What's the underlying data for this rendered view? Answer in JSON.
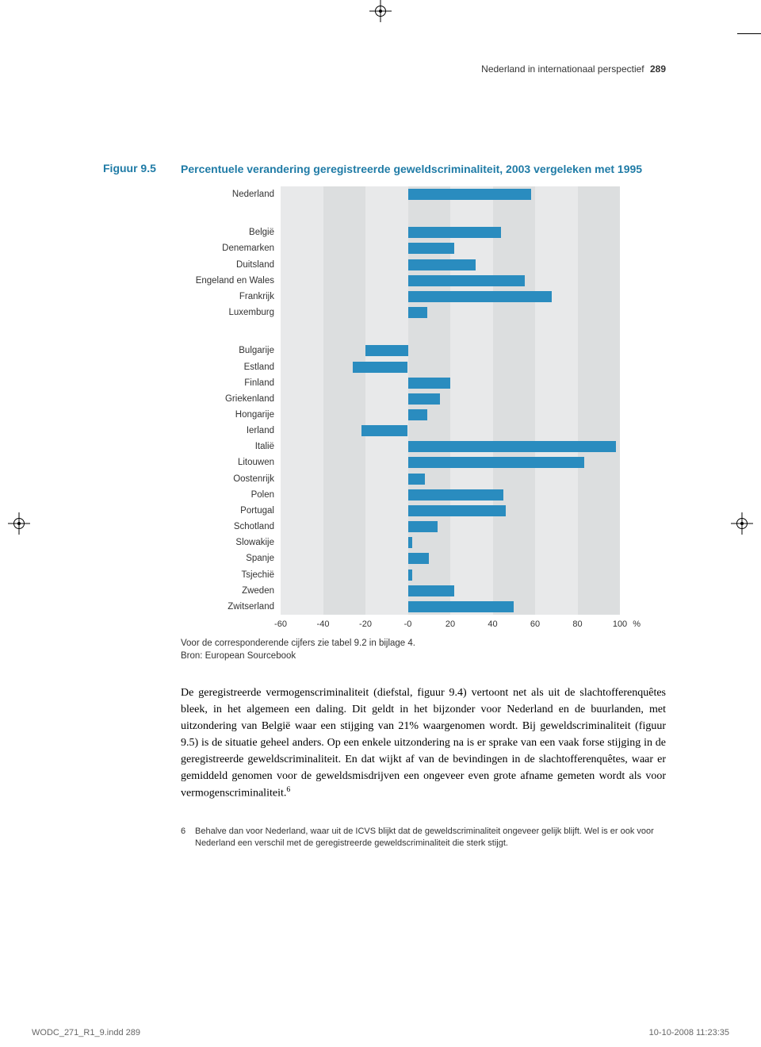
{
  "header": {
    "running_head": "Nederland in internationaal perspectief",
    "page_number": "289"
  },
  "figure": {
    "label": "Figuur 9.5",
    "title": "Percentuele verandering geregistreerde geweldscrimina­liteit, 2003 vergeleken met 1995"
  },
  "chart": {
    "type": "bar",
    "x_min": -60,
    "x_max": 100,
    "x_ticks": [
      -60,
      -40,
      -20,
      0,
      20,
      40,
      60,
      80,
      100
    ],
    "x_tick_labels": [
      "-60",
      "-40",
      "-20",
      "-0",
      "20",
      "40",
      "60",
      "80",
      "100"
    ],
    "unit": "%",
    "bar_color": "#2a8cbf",
    "band_colors": [
      "#e8e9ea",
      "#dcdedf"
    ],
    "background": "#ffffff",
    "groups": [
      {
        "items": [
          {
            "label": "Nederland",
            "value": 58
          }
        ]
      },
      {
        "items": [
          {
            "label": "België",
            "value": 44
          },
          {
            "label": "Denemarken",
            "value": 22
          },
          {
            "label": "Duitsland",
            "value": 32
          },
          {
            "label": "Engeland en Wales",
            "value": 55
          },
          {
            "label": "Frankrijk",
            "value": 68
          },
          {
            "label": "Luxemburg",
            "value": 9
          }
        ]
      },
      {
        "items": [
          {
            "label": "Bulgarije",
            "value": -20
          },
          {
            "label": "Estland",
            "value": -26
          },
          {
            "label": "Finland",
            "value": 20
          },
          {
            "label": "Griekenland",
            "value": 15
          },
          {
            "label": "Hongarije",
            "value": 9
          },
          {
            "label": "Ierland",
            "value": -22
          },
          {
            "label": "Italië",
            "value": 98
          },
          {
            "label": "Litouwen",
            "value": 83
          },
          {
            "label": "Oostenrijk",
            "value": 8
          },
          {
            "label": "Polen",
            "value": 45
          },
          {
            "label": "Portugal",
            "value": 46
          },
          {
            "label": "Schotland",
            "value": 14
          },
          {
            "label": "Slowakije",
            "value": 2
          },
          {
            "label": "Spanje",
            "value": 10
          },
          {
            "label": "Tsjechië",
            "value": 2
          },
          {
            "label": "Zweden",
            "value": 22
          },
          {
            "label": "Zwitserland",
            "value": 50
          }
        ]
      }
    ],
    "note1": "Voor de corresponderende cijfers zie tabel 9.2 in bijlage 4.",
    "note2": "Bron: European Sourcebook"
  },
  "body": "De geregistreerde vermogenscriminaliteit (diefstal, figuur 9.4) vertoont net als uit de slachtofferenquêtes bleek, in het algemeen een daling. Dit geldt in het bijzonder voor Nederland en de buurlanden, met uitzondering van België waar een stijging van 21% waargenomen wordt. Bij geweldscrimina­liteit (figuur 9.5) is de situatie geheel anders. Op een enkele uitzondering na is er sprake van een vaak forse stijging in de geregistreerde geweldscrimi­naliteit. En dat wijkt af van de bevindingen in de slachtofferenquêtes, waar er gemiddeld genomen voor de geweldsmisdrijven een ongeveer even grote afname gemeten wordt als voor vermogenscriminaliteit.",
  "body_sup": "6",
  "footnote": {
    "num": "6",
    "text": "Behalve dan voor Nederland, waar uit de ICVS blijkt dat de geweldscriminaliteit ongeveer gelijk blijft. Wel is er ook voor Nederland een verschil met de geregistreerde geweldscriminaliteit die sterk stijgt."
  },
  "footer": {
    "left": "WODC_271_R1_9.indd   289",
    "right": "10-10-2008   11:23:35"
  }
}
